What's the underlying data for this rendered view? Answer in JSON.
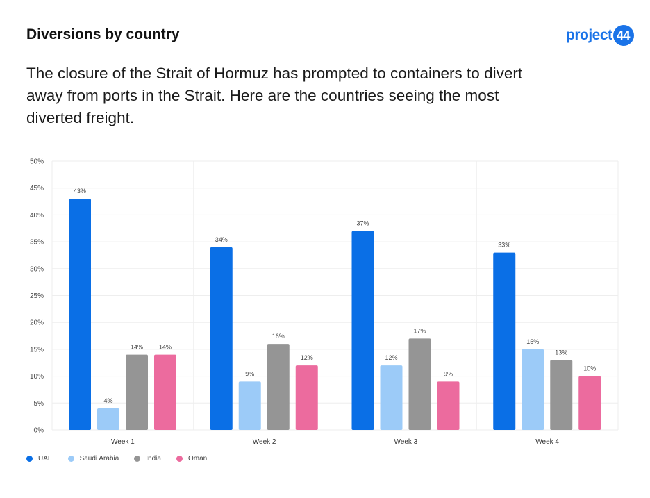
{
  "header": {
    "title": "Diversions by country",
    "subtitle": "The closure of the Strait of Hormuz has prompted to containers to divert away from ports in the Strait. Here are the countries seeing the most diverted freight.",
    "logo_text": "project",
    "logo_badge": "44",
    "logo_color": "#1a73e8"
  },
  "chart_data": {
    "type": "bar",
    "categories": [
      "Week 1",
      "Week 2",
      "Week 3",
      "Week 4"
    ],
    "series": [
      {
        "name": "UAE",
        "color": "#0a6fe6",
        "values": [
          43,
          34,
          37,
          33
        ]
      },
      {
        "name": "Saudi Arabia",
        "color": "#9ccbf8",
        "values": [
          4,
          9,
          12,
          15
        ]
      },
      {
        "name": "India",
        "color": "#959595",
        "values": [
          14,
          16,
          17,
          13
        ]
      },
      {
        "name": "Oman",
        "color": "#ec6b9e",
        "values": [
          14,
          12,
          9,
          10
        ]
      }
    ],
    "ylim": [
      0,
      50
    ],
    "yticks": [
      "0%",
      "5%",
      "10%",
      "15%",
      "20%",
      "25%",
      "30%",
      "35%",
      "40%",
      "45%",
      "50%"
    ],
    "value_suffix": "%",
    "grid": true,
    "legend": "bottom-left"
  }
}
